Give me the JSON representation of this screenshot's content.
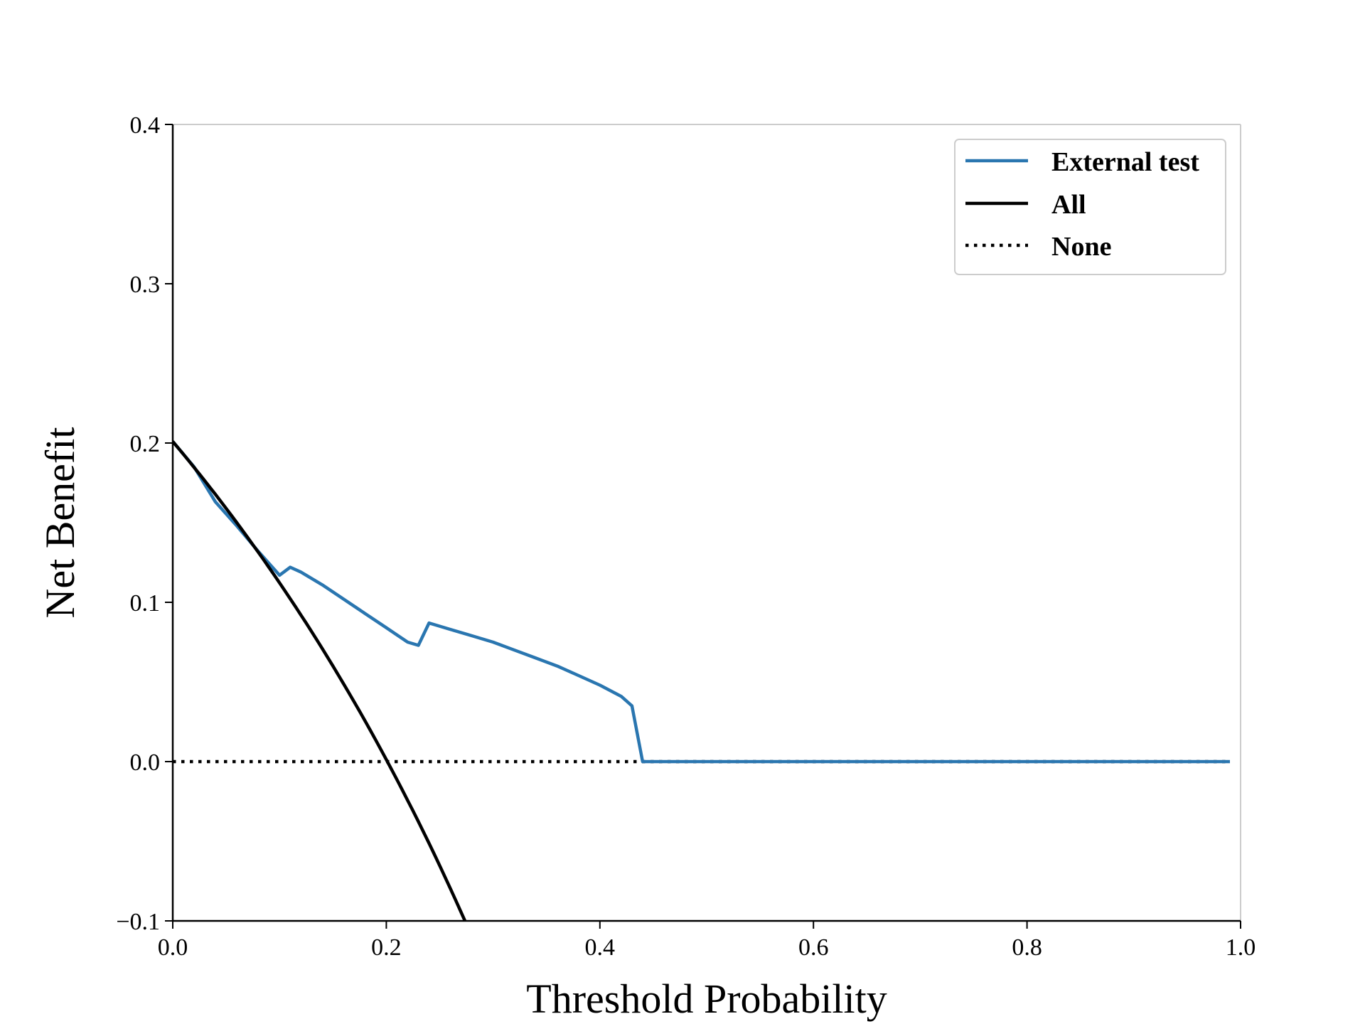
{
  "chart_data": {
    "type": "line",
    "title": "",
    "xlabel": "Threshold Probability",
    "ylabel": "Net Benefit",
    "xlim": [
      0.0,
      1.0
    ],
    "ylim": [
      -0.1,
      0.4
    ],
    "x_ticks": [
      0.0,
      0.2,
      0.4,
      0.6,
      0.8,
      1.0
    ],
    "x_tick_labels": [
      "0.0",
      "0.2",
      "0.4",
      "0.6",
      "0.8",
      "1.0"
    ],
    "y_ticks": [
      -0.1,
      0.0,
      0.1,
      0.2,
      0.3,
      0.4
    ],
    "y_tick_labels": [
      "−0.1",
      "0.0",
      "0.1",
      "0.2",
      "0.3",
      "0.4"
    ],
    "grid": false,
    "legend_position": "top-right",
    "series": [
      {
        "name": "External test",
        "style": "solid",
        "color": "#2a76b0",
        "x": [
          0.0,
          0.02,
          0.04,
          0.06,
          0.08,
          0.1,
          0.11,
          0.12,
          0.14,
          0.16,
          0.18,
          0.2,
          0.22,
          0.23,
          0.24,
          0.26,
          0.28,
          0.3,
          0.32,
          0.34,
          0.36,
          0.38,
          0.4,
          0.42,
          0.43,
          0.44,
          0.5,
          0.6,
          0.7,
          0.8,
          0.9,
          0.99
        ],
        "y": [
          0.201,
          0.185,
          0.163,
          0.148,
          0.132,
          0.117,
          0.122,
          0.119,
          0.111,
          0.102,
          0.093,
          0.084,
          0.075,
          0.073,
          0.087,
          0.083,
          0.079,
          0.075,
          0.07,
          0.065,
          0.06,
          0.054,
          0.048,
          0.041,
          0.035,
          0.0,
          0.0,
          0.0,
          0.0,
          0.0,
          0.0,
          0.0
        ]
      },
      {
        "name": "All",
        "style": "solid",
        "color": "#000000",
        "prevalence": 0.201,
        "x_range": [
          0.0,
          0.28
        ]
      },
      {
        "name": "None",
        "style": "dotted",
        "color": "#000000",
        "x": [
          0.0,
          0.99
        ],
        "y": [
          0.0,
          0.0
        ]
      }
    ]
  }
}
